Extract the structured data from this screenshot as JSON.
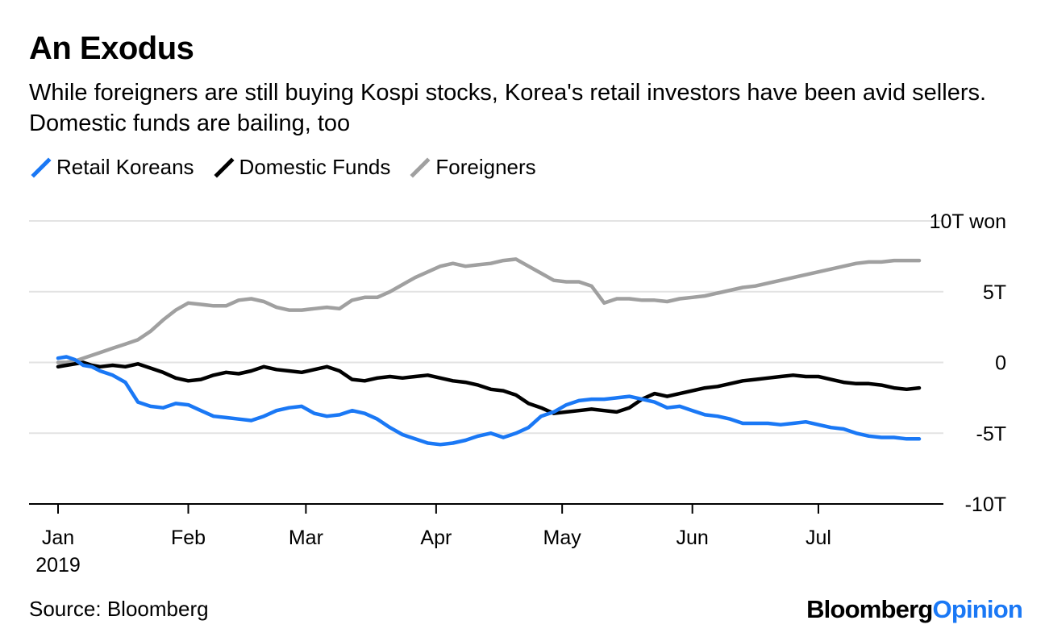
{
  "title": "An Exodus",
  "subtitle": "While foreigners are still buying Kospi stocks, Korea's retail investors have been avid sellers. Domestic funds are bailing, too",
  "legend": [
    {
      "name": "Retail Koreans",
      "color": "#1a78f5"
    },
    {
      "name": "Domestic Funds",
      "color": "#000000"
    },
    {
      "name": "Foreigners",
      "color": "#a0a0a0"
    }
  ],
  "source": "Source: Bloomberg",
  "brand": {
    "part1": "Bloomberg",
    "part2": "Opinion"
  },
  "chart_data": {
    "type": "line",
    "title": "An Exodus",
    "xlabel": "",
    "ylabel": "",
    "unit_label": "10T won",
    "ylim": [
      -10,
      10
    ],
    "x_range": [
      0,
      205
    ],
    "x_ticks": [
      {
        "x": 0,
        "label": "Jan",
        "sublabel": "2019"
      },
      {
        "x": 31,
        "label": "Feb"
      },
      {
        "x": 59,
        "label": "Mar"
      },
      {
        "x": 90,
        "label": "Apr"
      },
      {
        "x": 120,
        "label": "May"
      },
      {
        "x": 151,
        "label": "Jun"
      },
      {
        "x": 181,
        "label": "Jul"
      }
    ],
    "y_ticks": [
      {
        "value": 10,
        "label": "10T won"
      },
      {
        "value": 5,
        "label": "5T"
      },
      {
        "value": 0,
        "label": "0"
      },
      {
        "value": -5,
        "label": "-5T"
      },
      {
        "value": -10,
        "label": "-10T"
      }
    ],
    "x_days": [
      0,
      2,
      4,
      6,
      8,
      10,
      13,
      16,
      19,
      22,
      25,
      28,
      31,
      34,
      37,
      40,
      43,
      46,
      49,
      52,
      55,
      58,
      61,
      64,
      67,
      70,
      73,
      76,
      79,
      82,
      85,
      88,
      91,
      94,
      97,
      100,
      103,
      106,
      109,
      112,
      115,
      118,
      121,
      124,
      127,
      130,
      133,
      136,
      139,
      142,
      145,
      148,
      151,
      154,
      157,
      160,
      163,
      166,
      169,
      172,
      175,
      178,
      181,
      184,
      187,
      190,
      193,
      196,
      199,
      202,
      205
    ],
    "series": [
      {
        "name": "Retail Koreans",
        "color": "#1a78f5",
        "values": [
          0.3,
          0.4,
          0.2,
          -0.2,
          -0.3,
          -0.6,
          -0.9,
          -1.4,
          -2.8,
          -3.1,
          -3.2,
          -2.9,
          -3.0,
          -3.4,
          -3.8,
          -3.9,
          -4.0,
          -4.1,
          -3.8,
          -3.4,
          -3.2,
          -3.1,
          -3.6,
          -3.8,
          -3.7,
          -3.4,
          -3.6,
          -4.0,
          -4.6,
          -5.1,
          -5.4,
          -5.7,
          -5.8,
          -5.7,
          -5.5,
          -5.2,
          -5.0,
          -5.3,
          -5.0,
          -4.6,
          -3.8,
          -3.5,
          -3.0,
          -2.7,
          -2.6,
          -2.6,
          -2.5,
          -2.4,
          -2.6,
          -2.8,
          -3.2,
          -3.1,
          -3.4,
          -3.7,
          -3.8,
          -4.0,
          -4.3,
          -4.3,
          -4.3,
          -4.4,
          -4.3,
          -4.2,
          -4.4,
          -4.6,
          -4.7,
          -5.0,
          -5.2,
          -5.3,
          -5.3,
          -5.4,
          -5.4
        ]
      },
      {
        "name": "Domestic Funds",
        "color": "#000000",
        "values": [
          -0.3,
          -0.2,
          -0.1,
          0.0,
          -0.2,
          -0.3,
          -0.2,
          -0.3,
          -0.1,
          -0.4,
          -0.7,
          -1.1,
          -1.3,
          -1.2,
          -0.9,
          -0.7,
          -0.8,
          -0.6,
          -0.3,
          -0.5,
          -0.6,
          -0.7,
          -0.5,
          -0.3,
          -0.6,
          -1.2,
          -1.3,
          -1.1,
          -1.0,
          -1.1,
          -1.0,
          -0.9,
          -1.1,
          -1.3,
          -1.4,
          -1.6,
          -1.9,
          -2.0,
          -2.3,
          -2.9,
          -3.2,
          -3.6,
          -3.5,
          -3.4,
          -3.3,
          -3.4,
          -3.5,
          -3.2,
          -2.6,
          -2.2,
          -2.4,
          -2.2,
          -2.0,
          -1.8,
          -1.7,
          -1.5,
          -1.3,
          -1.2,
          -1.1,
          -1.0,
          -0.9,
          -1.0,
          -1.0,
          -1.2,
          -1.4,
          -1.5,
          -1.5,
          -1.6,
          -1.8,
          -1.9,
          -1.8
        ]
      },
      {
        "name": "Foreigners",
        "color": "#a0a0a0",
        "values": [
          0.0,
          0.0,
          0.1,
          0.3,
          0.5,
          0.7,
          1.0,
          1.3,
          1.6,
          2.2,
          3.0,
          3.7,
          4.2,
          4.1,
          4.0,
          4.0,
          4.4,
          4.5,
          4.3,
          3.9,
          3.7,
          3.7,
          3.8,
          3.9,
          3.8,
          4.4,
          4.6,
          4.6,
          5.0,
          5.5,
          6.0,
          6.4,
          6.8,
          7.0,
          6.8,
          6.9,
          7.0,
          7.2,
          7.3,
          6.8,
          6.3,
          5.8,
          5.7,
          5.7,
          5.4,
          4.2,
          4.5,
          4.5,
          4.4,
          4.4,
          4.3,
          4.5,
          4.6,
          4.7,
          4.9,
          5.1,
          5.3,
          5.4,
          5.6,
          5.8,
          6.0,
          6.2,
          6.4,
          6.6,
          6.8,
          7.0,
          7.1,
          7.1,
          7.2,
          7.2,
          7.2
        ]
      }
    ]
  }
}
